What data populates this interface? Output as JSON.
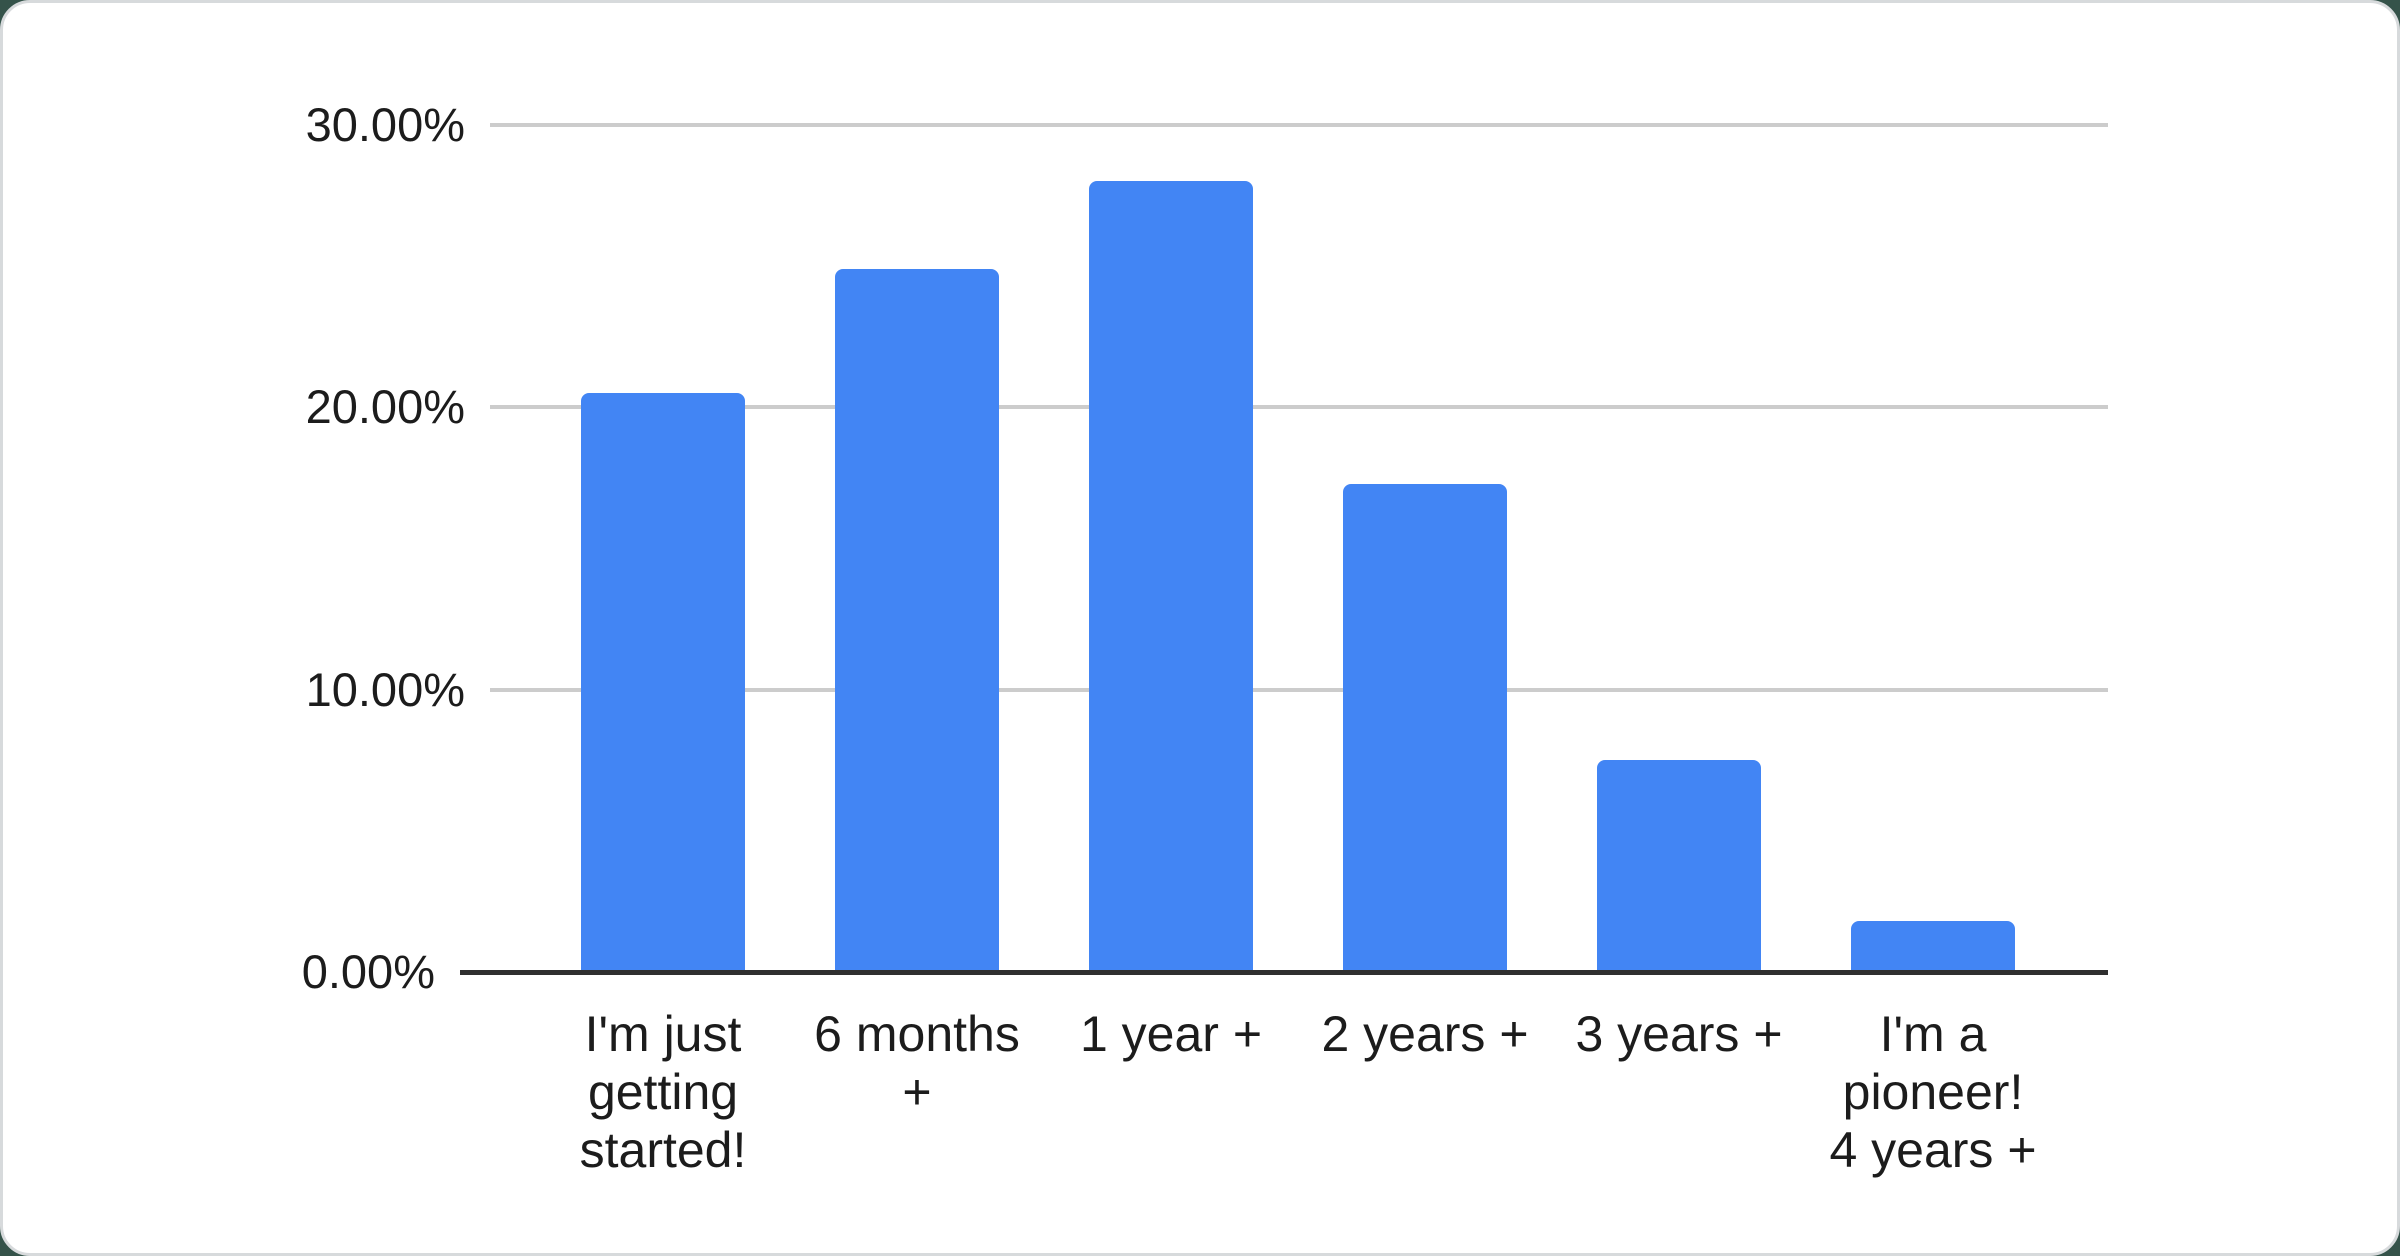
{
  "chart_data": {
    "type": "bar",
    "title": "",
    "xlabel": "",
    "ylabel": "",
    "categories": [
      "I'm just getting started!",
      "6 months +",
      "1 year +",
      "2 years +",
      "3 years +",
      "I'm a pioneer! 4 years +"
    ],
    "category_display": [
      "I'm just\ngetting\nstarted!",
      "6 months\n+",
      "1 year +",
      "2 years +",
      "3 years +",
      "I'm a\npioneer!\n4 years +"
    ],
    "values": [
      20.5,
      24.9,
      28.0,
      17.3,
      7.5,
      1.8
    ],
    "unit": "percent",
    "ylim": [
      0,
      30
    ],
    "y_ticks": [
      {
        "label": "30.00%",
        "value": 30
      },
      {
        "label": "20.00%",
        "value": 20
      },
      {
        "label": "10.00%",
        "value": 10
      },
      {
        "label": "0.00%",
        "value": 0
      }
    ],
    "grid": true,
    "legend": "none",
    "colors": {
      "bar": "#4285F4",
      "gridline": "#cccccc",
      "axis_line": "#2f2f2f",
      "label_text": "#1c1c1c",
      "card_background": "#ffffff",
      "card_border": "#d7dadc",
      "page_background": "#35534a"
    }
  }
}
